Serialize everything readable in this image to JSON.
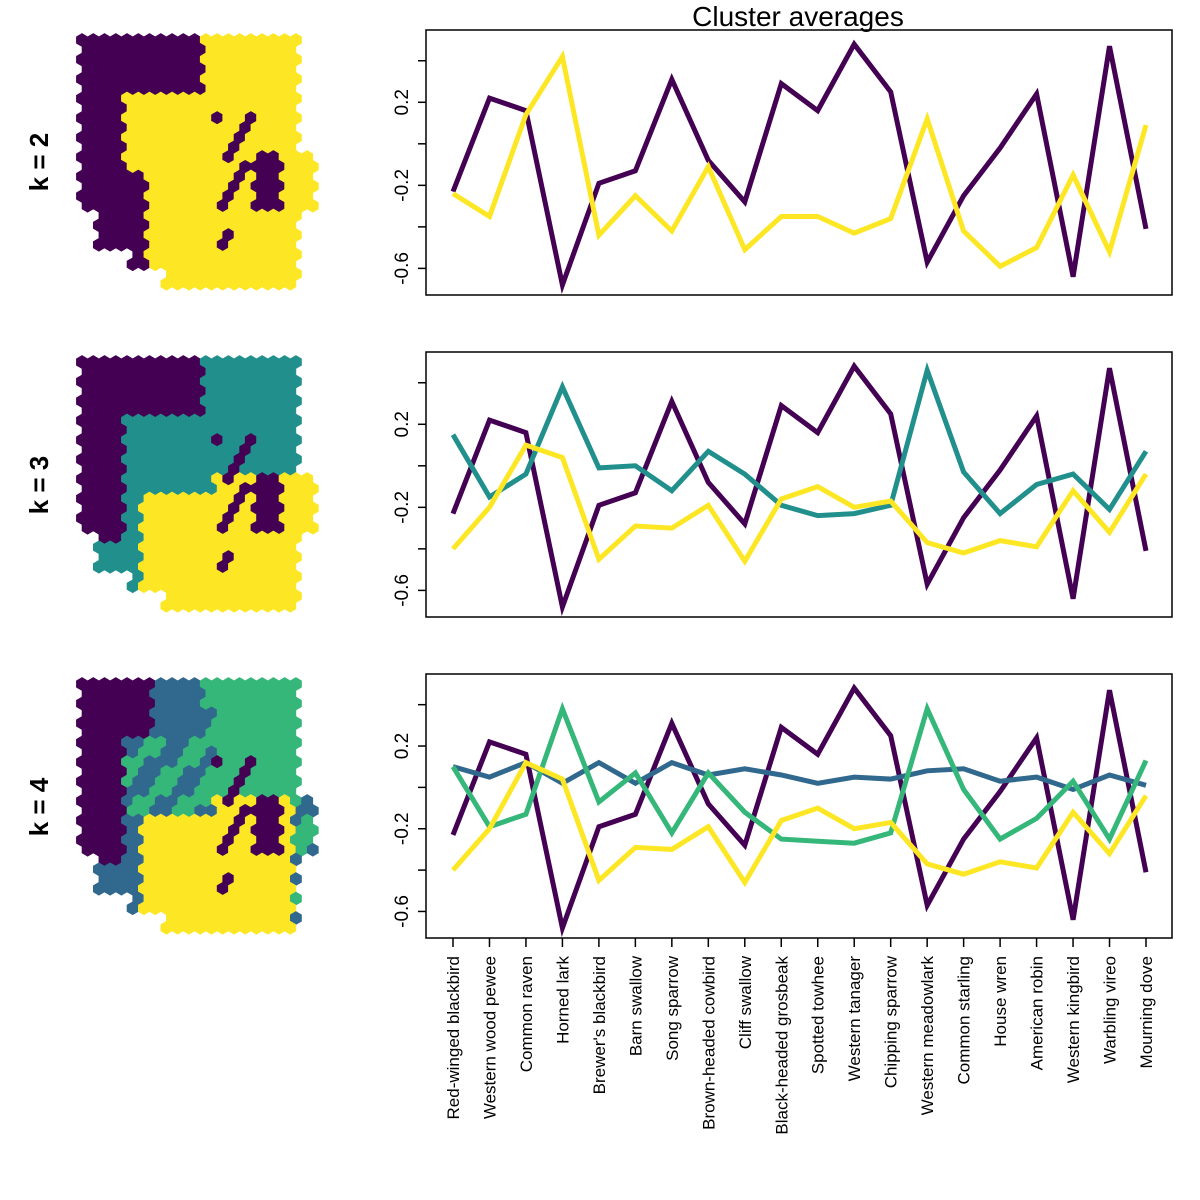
{
  "colors": {
    "cluster_1": "#440154",
    "cluster_2": "#31688E",
    "cluster_3": "#35B779",
    "cluster_3_k3": "#21908C",
    "cluster_last": "#FDE725",
    "background": "#FFFFFF"
  },
  "maps": [
    {
      "label": "k = 2",
      "clusters": 2
    },
    {
      "label": "k = 3",
      "clusters": 3
    },
    {
      "label": "k = 4",
      "clusters": 4
    }
  ],
  "chart_data": [
    {
      "type": "line",
      "title": "Cluster averages",
      "row_label": "k = 2",
      "categories": [
        "Red-winged blackbird",
        "Western wood pewee",
        "Common raven",
        "Horned lark",
        "Brewer's blackbird",
        "Barn swallow",
        "Song sparrow",
        "Brown-headed cowbird",
        "Cliff swallow",
        "Black-headed grosbeak",
        "Spotted towhee",
        "Western tanager",
        "Chipping sparrow",
        "Western meadowlark",
        "Common starling",
        "House wren",
        "American robin",
        "Western kingbird",
        "Warbling vireo",
        "Mourning dove"
      ],
      "ylim": [
        -0.68,
        0.5
      ],
      "yticks": [
        -0.6,
        -0.4,
        -0.2,
        0,
        0.2,
        0.4
      ],
      "ytick_labels": [
        "-0.6",
        "",
        "-0.2",
        "",
        "0.2",
        ""
      ],
      "series": [
        {
          "color": "#440154",
          "values": [
            -0.23,
            0.22,
            0.16,
            -0.68,
            -0.19,
            -0.13,
            0.31,
            -0.08,
            -0.28,
            0.29,
            0.16,
            0.48,
            0.25,
            -0.57,
            -0.25,
            -0.02,
            0.24,
            -0.64,
            0.47,
            -0.41
          ]
        },
        {
          "color": "#FDE725",
          "values": [
            -0.24,
            -0.35,
            0.14,
            0.42,
            -0.44,
            -0.25,
            -0.42,
            -0.11,
            -0.51,
            -0.35,
            -0.35,
            -0.43,
            -0.36,
            0.12,
            -0.42,
            -0.59,
            -0.5,
            -0.15,
            -0.52,
            0.09
          ]
        }
      ]
    },
    {
      "type": "line",
      "title": "",
      "row_label": "k = 3",
      "categories": [
        "Red-winged blackbird",
        "Western wood pewee",
        "Common raven",
        "Horned lark",
        "Brewer's blackbird",
        "Barn swallow",
        "Song sparrow",
        "Brown-headed cowbird",
        "Cliff swallow",
        "Black-headed grosbeak",
        "Spotted towhee",
        "Western tanager",
        "Chipping sparrow",
        "Western meadowlark",
        "Common starling",
        "House wren",
        "American robin",
        "Western kingbird",
        "Warbling vireo",
        "Mourning dove"
      ],
      "ylim": [
        -0.68,
        0.5
      ],
      "yticks": [
        -0.6,
        -0.4,
        -0.2,
        0,
        0.2,
        0.4
      ],
      "ytick_labels": [
        "-0.6",
        "",
        "-0.2",
        "",
        "0.2",
        ""
      ],
      "series": [
        {
          "color": "#440154",
          "values": [
            -0.23,
            0.22,
            0.16,
            -0.68,
            -0.19,
            -0.13,
            0.31,
            -0.08,
            -0.28,
            0.29,
            0.16,
            0.48,
            0.25,
            -0.57,
            -0.25,
            -0.02,
            0.24,
            -0.64,
            0.47,
            -0.41
          ]
        },
        {
          "color": "#21908C",
          "values": [
            0.15,
            -0.15,
            -0.04,
            0.38,
            -0.01,
            0.0,
            -0.12,
            0.07,
            -0.04,
            -0.19,
            -0.24,
            -0.23,
            -0.19,
            0.46,
            -0.03,
            -0.23,
            -0.09,
            -0.04,
            -0.21,
            0.07
          ]
        },
        {
          "color": "#FDE725",
          "values": [
            -0.4,
            -0.2,
            0.1,
            0.04,
            -0.45,
            -0.29,
            -0.3,
            -0.19,
            -0.46,
            -0.16,
            -0.1,
            -0.2,
            -0.17,
            -0.37,
            -0.42,
            -0.36,
            -0.39,
            -0.12,
            -0.32,
            -0.04
          ]
        }
      ]
    },
    {
      "type": "line",
      "title": "",
      "row_label": "k = 4",
      "categories": [
        "Red-winged blackbird",
        "Western wood pewee",
        "Common raven",
        "Horned lark",
        "Brewer's blackbird",
        "Barn swallow",
        "Song sparrow",
        "Brown-headed cowbird",
        "Cliff swallow",
        "Black-headed grosbeak",
        "Spotted towhee",
        "Western tanager",
        "Chipping sparrow",
        "Western meadowlark",
        "Common starling",
        "House wren",
        "American robin",
        "Western kingbird",
        "Warbling vireo",
        "Mourning dove"
      ],
      "ylim": [
        -0.68,
        0.5
      ],
      "yticks": [
        -0.6,
        -0.4,
        -0.2,
        0,
        0.2,
        0.4
      ],
      "ytick_labels": [
        "-0.6",
        "",
        "-0.2",
        "",
        "0.2",
        ""
      ],
      "series": [
        {
          "color": "#440154",
          "values": [
            -0.23,
            0.22,
            0.16,
            -0.68,
            -0.19,
            -0.13,
            0.31,
            -0.08,
            -0.28,
            0.29,
            0.16,
            0.48,
            0.25,
            -0.57,
            -0.25,
            -0.02,
            0.24,
            -0.64,
            0.47,
            -0.41
          ]
        },
        {
          "color": "#31688E",
          "values": [
            0.1,
            0.05,
            0.12,
            0.02,
            0.12,
            0.02,
            0.12,
            0.06,
            0.09,
            0.06,
            0.02,
            0.05,
            0.04,
            0.08,
            0.09,
            0.03,
            0.05,
            -0.01,
            0.06,
            0.01
          ]
        },
        {
          "color": "#35B779",
          "values": [
            0.1,
            -0.19,
            -0.13,
            0.38,
            -0.07,
            0.07,
            -0.22,
            0.07,
            -0.12,
            -0.25,
            -0.26,
            -0.27,
            -0.22,
            0.38,
            -0.01,
            -0.25,
            -0.15,
            0.03,
            -0.25,
            0.13
          ]
        },
        {
          "color": "#FDE725",
          "values": [
            -0.4,
            -0.2,
            0.12,
            0.04,
            -0.45,
            -0.29,
            -0.3,
            -0.19,
            -0.46,
            -0.16,
            -0.1,
            -0.2,
            -0.17,
            -0.37,
            -0.42,
            -0.36,
            -0.39,
            -0.12,
            -0.32,
            -0.04
          ]
        }
      ]
    }
  ]
}
